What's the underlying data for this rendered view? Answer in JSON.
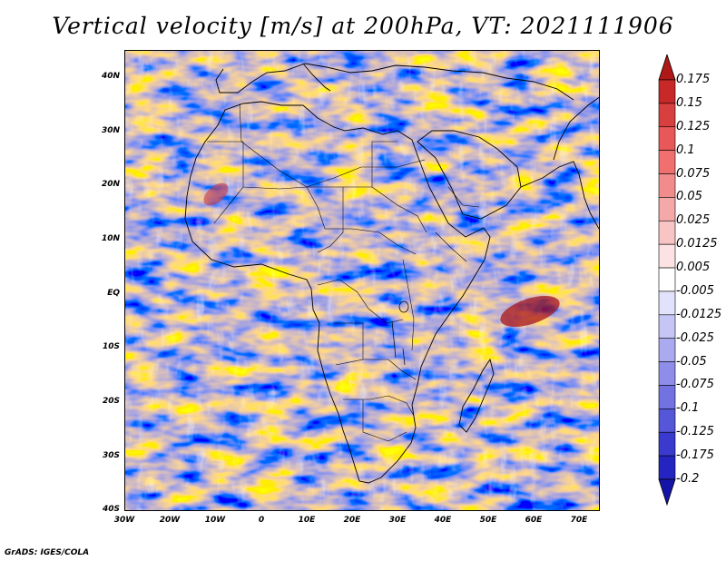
{
  "title": "Vertical velocity [m/s] at 200hPa, VT: 2021111906",
  "credit": "GrADS: IGES/COLA",
  "lat_labels": [
    "40N",
    "30N",
    "20N",
    "10N",
    "EQ",
    "10S",
    "20S",
    "30S",
    "40S"
  ],
  "lon_labels": [
    "30W",
    "20W",
    "10W",
    "0",
    "10E",
    "20E",
    "30E",
    "40E",
    "50E",
    "60E",
    "70E"
  ],
  "colorbar": {
    "labels": [
      "0.175",
      "0.15",
      "0.125",
      "0.1",
      "0.075",
      "0.05",
      "0.025",
      "0.0125",
      "0.005",
      "-0.005",
      "-0.0125",
      "-0.025",
      "-0.05",
      "-0.075",
      "-0.1",
      "-0.125",
      "-0.175",
      "-0.2"
    ],
    "colors": [
      "#b01818",
      "#c82828",
      "#d84040",
      "#e85858",
      "#f07070",
      "#f28c8c",
      "#f4a8a8",
      "#f8c4c4",
      "#fce2e2",
      "#ffffff",
      "#e2e2fc",
      "#c6c6f6",
      "#aaaaf0",
      "#8e8eea",
      "#7272e0",
      "#5656d8",
      "#3a3ace",
      "#2424c0",
      "#1414a8"
    ]
  }
}
